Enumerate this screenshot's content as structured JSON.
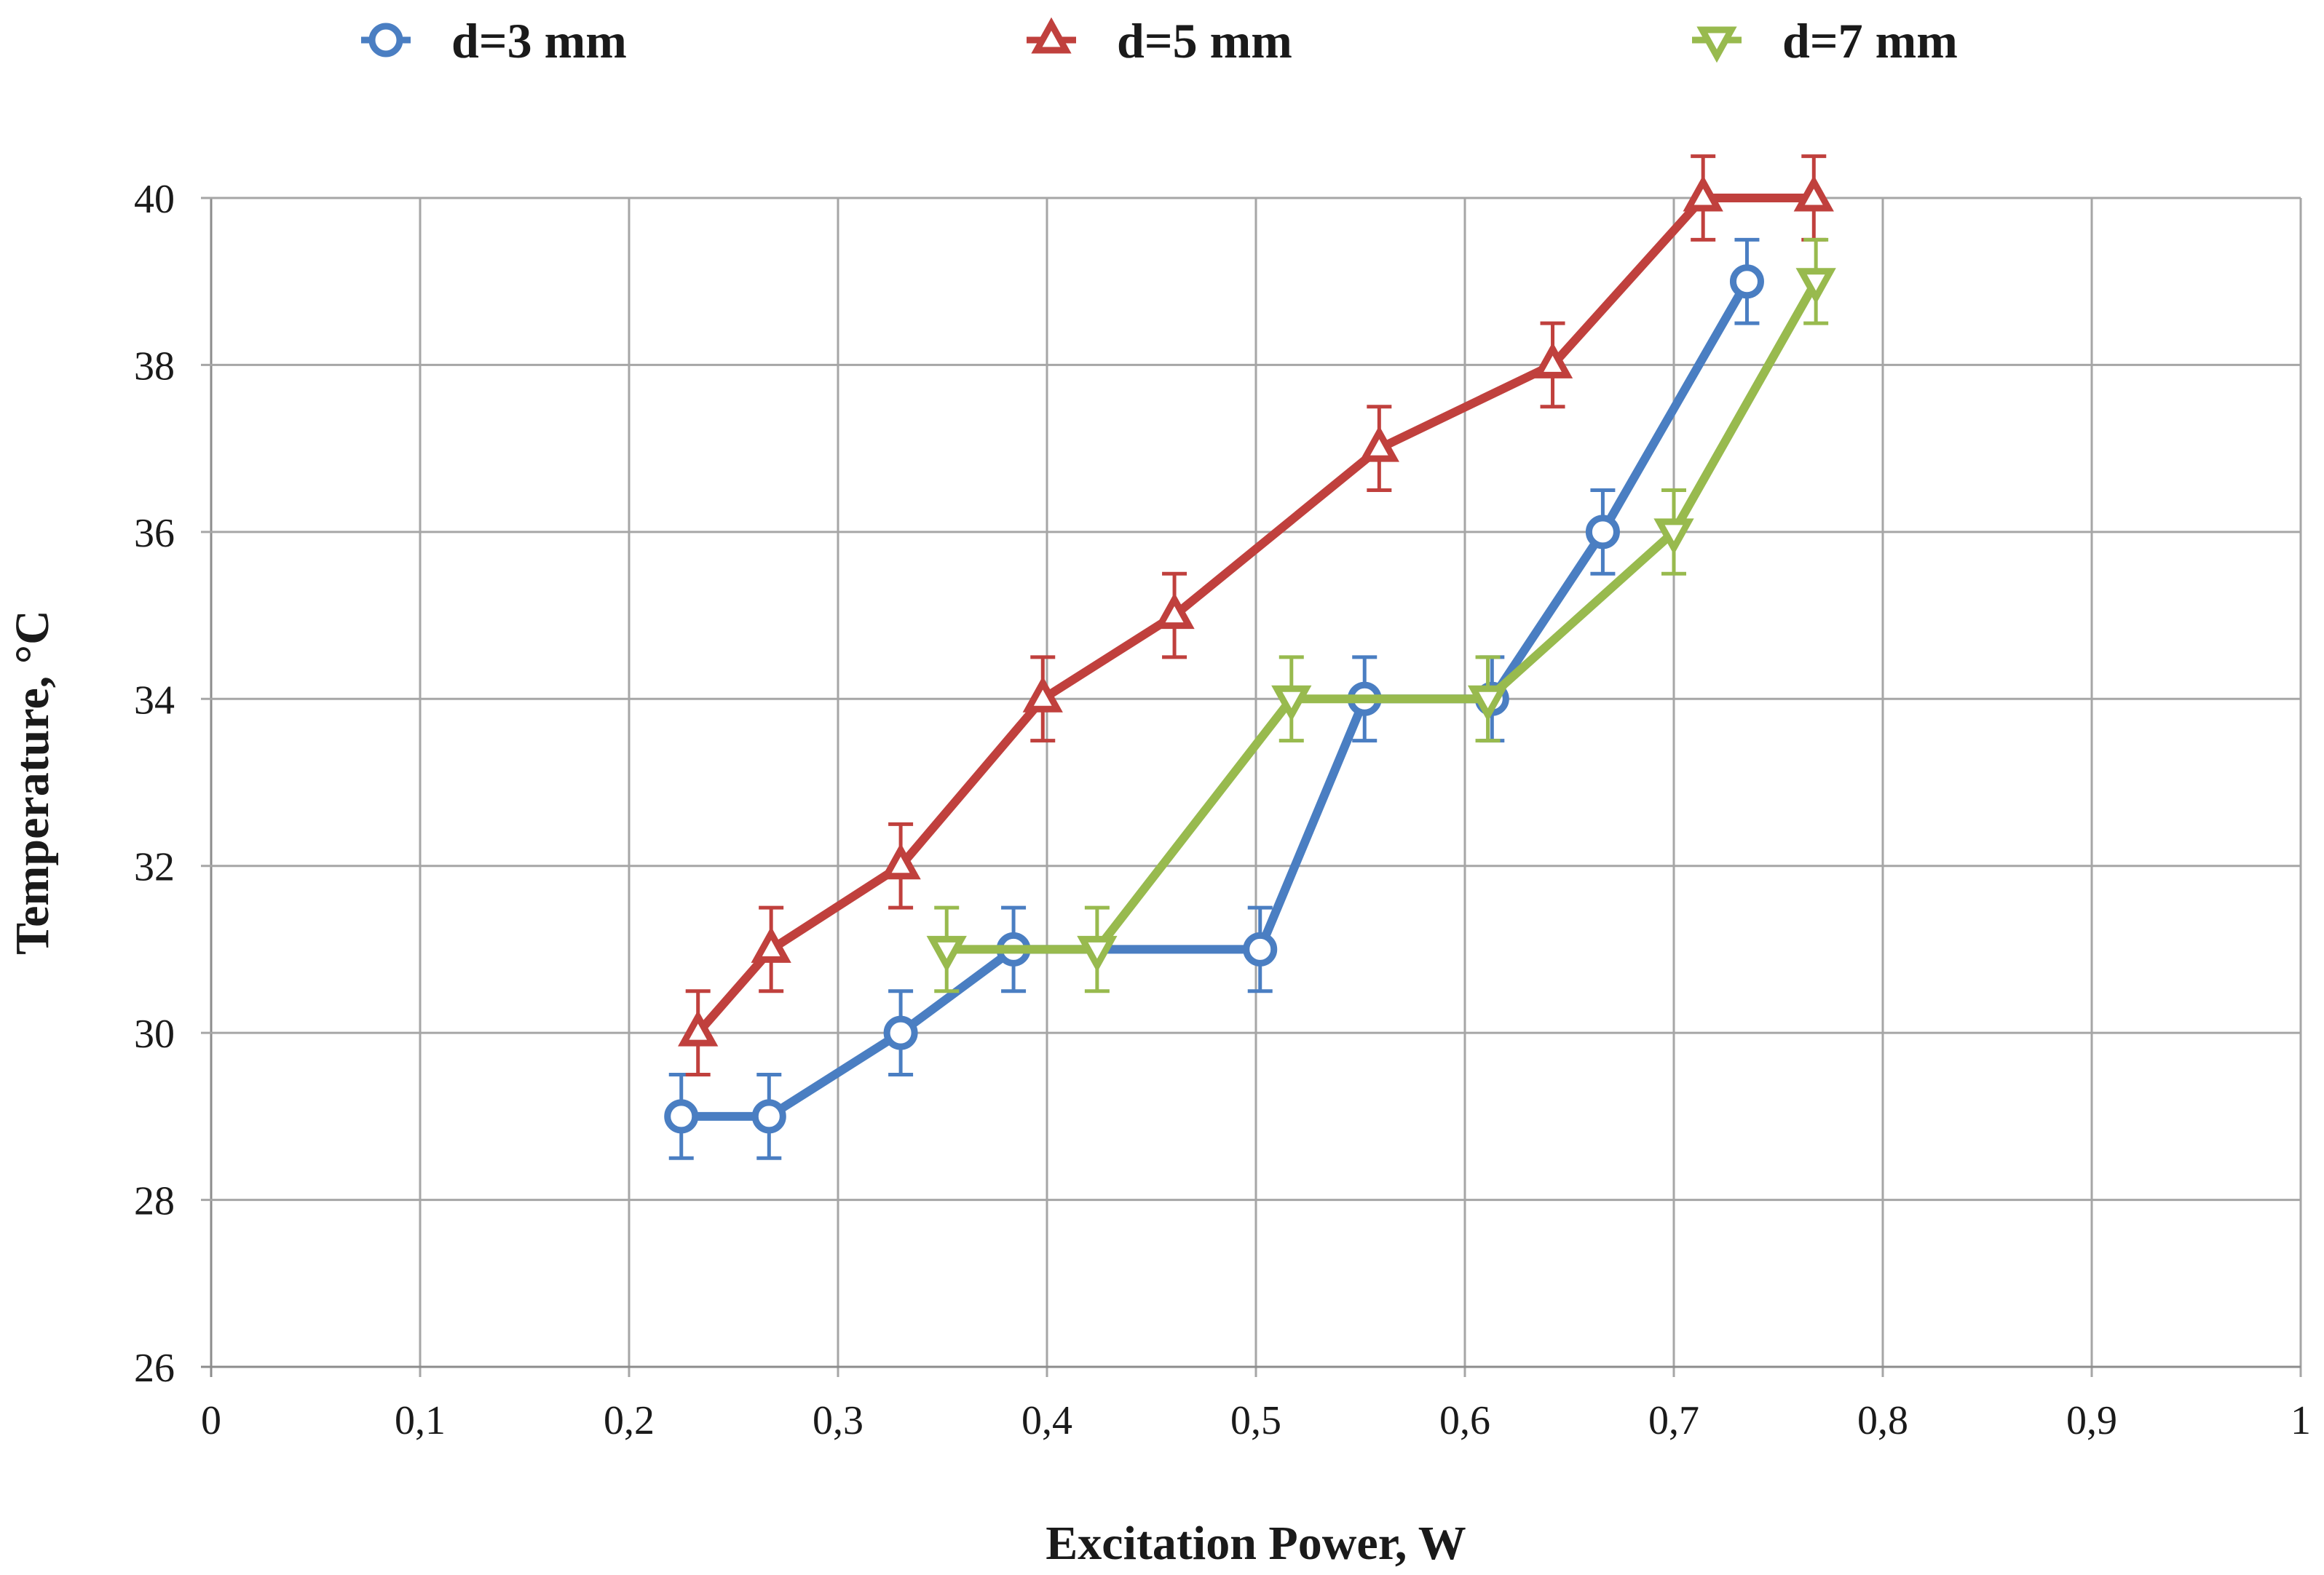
{
  "chart_data": {
    "type": "line",
    "title": "",
    "xlabel": "Excitation Power, W",
    "ylabel": "Temperature, °C",
    "xlim": [
      0,
      1
    ],
    "ylim": [
      26,
      40
    ],
    "grid": true,
    "legend_position": "top",
    "x_ticks": [
      0,
      0.1,
      0.2,
      0.3,
      0.4,
      0.5,
      0.6,
      0.7,
      0.8,
      0.9,
      1
    ],
    "x_tick_labels": [
      "0",
      "0,1",
      "0,2",
      "0,3",
      "0,4",
      "0,5",
      "0,6",
      "0,7",
      "0,8",
      "0,9",
      "1"
    ],
    "y_ticks": [
      26,
      28,
      30,
      32,
      34,
      36,
      38,
      40
    ],
    "y_tick_labels": [
      "26",
      "28",
      "30",
      "32",
      "34",
      "36",
      "38",
      "40"
    ],
    "error_bar": 0.5,
    "series": [
      {
        "name": "d=3 mm",
        "color": "#4a7ec2",
        "marker": "circle",
        "x": [
          0.225,
          0.267,
          0.33,
          0.384,
          0.502,
          0.552,
          0.613,
          0.666,
          0.735
        ],
        "y": [
          29,
          29,
          30,
          31,
          31,
          34,
          34,
          36,
          39
        ]
      },
      {
        "name": "d=5 mm",
        "color": "#c0403d",
        "marker": "triangle-up",
        "x": [
          0.233,
          0.268,
          0.33,
          0.398,
          0.461,
          0.559,
          0.642,
          0.714,
          0.767
        ],
        "y": [
          30,
          31,
          32,
          34,
          35,
          37,
          38,
          40,
          40
        ]
      },
      {
        "name": "d=7 mm",
        "color": "#98ba4e",
        "marker": "triangle-down",
        "x": [
          0.352,
          0.424,
          0.517,
          0.611,
          0.7,
          0.768
        ],
        "y": [
          31,
          31,
          34,
          34,
          36,
          39
        ]
      }
    ]
  }
}
